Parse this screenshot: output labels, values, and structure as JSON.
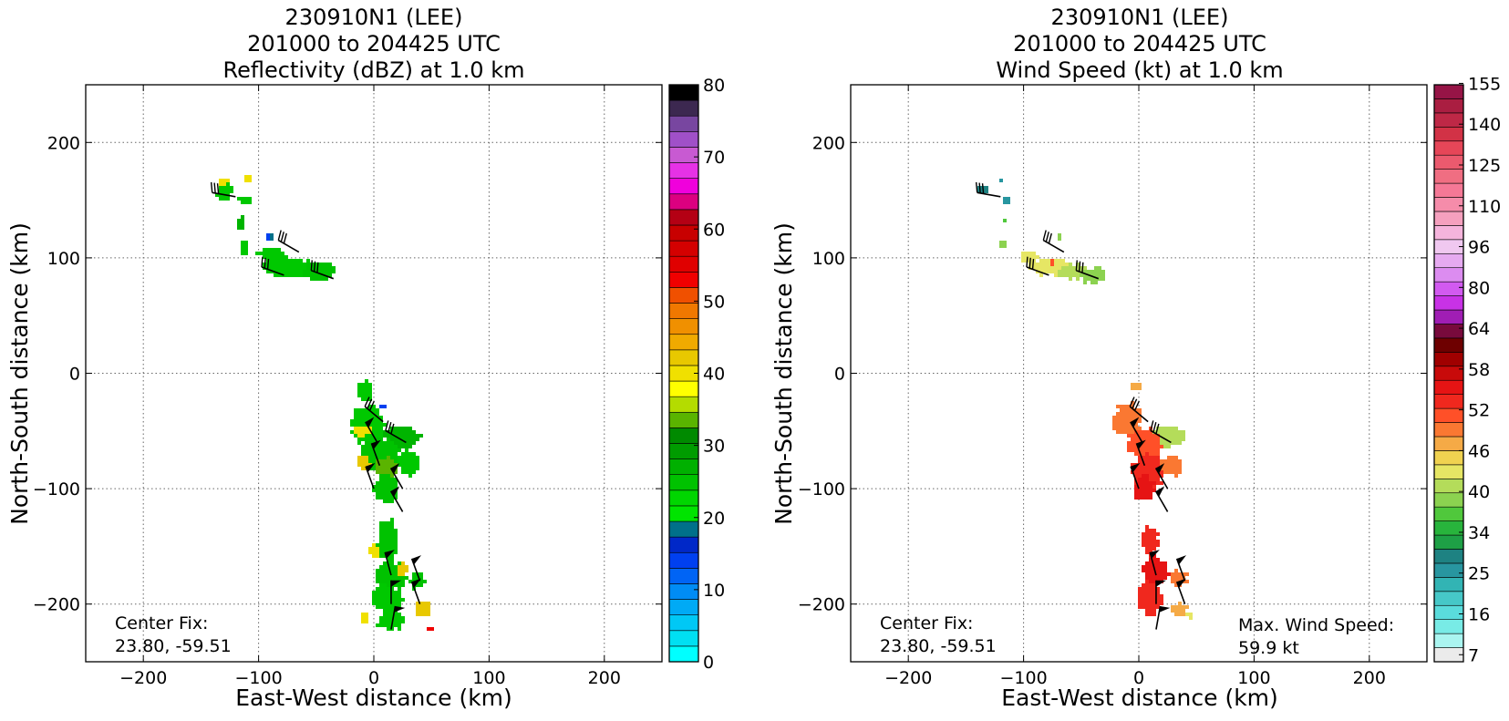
{
  "chart_data": [
    {
      "type": "heatmap",
      "title": [
        "230910N1 (LEE)",
        "201000 to 204425 UTC",
        "Reflectivity (dBZ) at 1.0 km"
      ],
      "xlabel": "East-West distance (km)",
      "ylabel": "North-South distance (km)",
      "xlim": [
        -250,
        250
      ],
      "ylim": [
        -250,
        250
      ],
      "xticks": [
        -200,
        -100,
        0,
        100,
        200
      ],
      "yticks": [
        200,
        100,
        0,
        -100,
        -200
      ],
      "grid": true,
      "annotation": [
        "Center Fix:",
        "23.80, -59.51"
      ],
      "colorbar": {
        "min": 0,
        "max": 80,
        "tick_values": [
          0,
          10,
          20,
          30,
          40,
          50,
          60,
          70,
          80
        ],
        "colors": [
          "#00ffff",
          "#00e0f2",
          "#00c8f5",
          "#00aaf5",
          "#008cf5",
          "#0064f5",
          "#0040f0",
          "#0028c8",
          "#00708a",
          "#00e400",
          "#00d600",
          "#00c200",
          "#00b000",
          "#009c00",
          "#008a00",
          "#5ab400",
          "#b4dc00",
          "#ffff00",
          "#f0e000",
          "#e8c800",
          "#f0aa00",
          "#f09000",
          "#f07800",
          "#f05000",
          "#f00000",
          "#e00000",
          "#d40000",
          "#c80000",
          "#b40014",
          "#dc0080",
          "#f000dc",
          "#e632e6",
          "#c85ad2",
          "#a050c8",
          "#7846a0",
          "#3c2850",
          "#000000"
        ]
      },
      "regions": [
        {
          "cx": -130,
          "cy": 158,
          "rx": 8,
          "ry": 9,
          "color": "#00c800"
        },
        {
          "cx": -130,
          "cy": 166,
          "rx": 5,
          "ry": 3,
          "color": "#f0e000"
        },
        {
          "cx": -112,
          "cy": 150,
          "rx": 6,
          "ry": 4,
          "color": "#00c800"
        },
        {
          "cx": -110,
          "cy": 168,
          "rx": 4,
          "ry": 3,
          "color": "#f0e000"
        },
        {
          "cx": -115,
          "cy": 130,
          "rx": 4,
          "ry": 6,
          "color": "#00b400"
        },
        {
          "cx": -112,
          "cy": 110,
          "rx": 5,
          "ry": 8,
          "color": "#00c800"
        },
        {
          "cx": -88,
          "cy": 103,
          "rx": 14,
          "ry": 7,
          "color": "#00c800"
        },
        {
          "cx": -75,
          "cy": 92,
          "rx": 24,
          "ry": 9,
          "color": "#00c800"
        },
        {
          "cx": -48,
          "cy": 88,
          "rx": 16,
          "ry": 9,
          "color": "#00c200"
        },
        {
          "cx": -92,
          "cy": 118,
          "rx": 3,
          "ry": 3,
          "color": "#0040f0"
        },
        {
          "cx": -88,
          "cy": 118,
          "rx": 2,
          "ry": 2,
          "color": "#00708a"
        },
        {
          "cx": -8,
          "cy": -15,
          "rx": 8,
          "ry": 10,
          "color": "#00c800"
        },
        {
          "cx": 8,
          "cy": -28,
          "rx": 3,
          "ry": 2,
          "color": "#0040f0"
        },
        {
          "cx": -5,
          "cy": -45,
          "rx": 16,
          "ry": 18,
          "color": "#00c800"
        },
        {
          "cx": 25,
          "cy": -55,
          "rx": 18,
          "ry": 10,
          "color": "#00b400"
        },
        {
          "cx": -10,
          "cy": -50,
          "rx": 9,
          "ry": 6,
          "color": "#f0e000"
        },
        {
          "cx": 5,
          "cy": -70,
          "rx": 18,
          "ry": 16,
          "color": "#00c200"
        },
        {
          "cx": 10,
          "cy": -82,
          "rx": 10,
          "ry": 10,
          "color": "#5ab400"
        },
        {
          "cx": -8,
          "cy": -78,
          "rx": 6,
          "ry": 8,
          "color": "#e8c800"
        },
        {
          "cx": 30,
          "cy": -78,
          "rx": 10,
          "ry": 12,
          "color": "#00c800"
        },
        {
          "cx": 10,
          "cy": -100,
          "rx": 12,
          "ry": 14,
          "color": "#00c200"
        },
        {
          "cx": 12,
          "cy": -145,
          "rx": 10,
          "ry": 20,
          "color": "#00c200"
        },
        {
          "cx": 0,
          "cy": -155,
          "rx": 5,
          "ry": 7,
          "color": "#f0e000"
        },
        {
          "cx": 15,
          "cy": -175,
          "rx": 14,
          "ry": 14,
          "color": "#00c200"
        },
        {
          "cx": 25,
          "cy": -170,
          "rx": 6,
          "ry": 6,
          "color": "#e8c800"
        },
        {
          "cx": 12,
          "cy": -195,
          "rx": 14,
          "ry": 14,
          "color": "#00c800"
        },
        {
          "cx": 38,
          "cy": -180,
          "rx": 8,
          "ry": 8,
          "color": "#00c200"
        },
        {
          "cx": 42,
          "cy": -205,
          "rx": 8,
          "ry": 8,
          "color": "#e8c800"
        },
        {
          "cx": 15,
          "cy": -215,
          "rx": 14,
          "ry": 8,
          "color": "#00c800"
        },
        {
          "cx": -8,
          "cy": -212,
          "rx": 5,
          "ry": 5,
          "color": "#f0e000"
        },
        {
          "cx": 50,
          "cy": -222,
          "rx": 4,
          "ry": 2,
          "color": "#f00000"
        }
      ]
    },
    {
      "type": "heatmap",
      "title": [
        "230910N1 (LEE)",
        "201000 to 204425 UTC",
        "Wind Speed (kt) at 1.0 km"
      ],
      "xlabel": "East-West distance (km)",
      "ylabel": "North-South distance (km)",
      "xlim": [
        -250,
        250
      ],
      "ylim": [
        -250,
        250
      ],
      "xticks": [
        -200,
        -100,
        0,
        100,
        200
      ],
      "yticks": [
        200,
        100,
        0,
        -100,
        -200
      ],
      "grid": true,
      "annotation": [
        "Center Fix:",
        "23.80, -59.51"
      ],
      "max_wind_label": [
        "Max. Wind Speed:",
        "59.9 kt"
      ],
      "colorbar": {
        "tick_values": [
          7,
          16,
          25,
          34,
          40,
          46,
          52,
          58,
          64,
          80,
          96,
          110,
          125,
          140,
          155
        ],
        "colors": [
          "#ebebeb",
          "#aaf5f0",
          "#78ebe6",
          "#5adcdc",
          "#46c8c8",
          "#32b4b4",
          "#2896a0",
          "#1e8282",
          "#1ea046",
          "#28b43c",
          "#50c83c",
          "#8cd250",
          "#b4dc5a",
          "#e6e664",
          "#f0d250",
          "#f5aa46",
          "#fa7832",
          "#ff5028",
          "#f0281e",
          "#e61414",
          "#c80a0a",
          "#a00000",
          "#6e0000",
          "#780a3c",
          "#a01eb4",
          "#c832e6",
          "#d25af0",
          "#dc8cf0",
          "#e6aaf0",
          "#f0c8f0",
          "#f5b4dc",
          "#f5a0be",
          "#f58caa",
          "#f57896",
          "#f06e82",
          "#eb5a6e",
          "#e64658",
          "#d23246",
          "#be2846",
          "#aa1e41",
          "#961446"
        ]
      },
      "regions": [
        {
          "cx": -135,
          "cy": 160,
          "rx": 6,
          "ry": 4,
          "color": "#1e8282"
        },
        {
          "cx": -115,
          "cy": 150,
          "rx": 4,
          "ry": 3,
          "color": "#2896a0"
        },
        {
          "cx": -118,
          "cy": 168,
          "rx": 2,
          "ry": 3,
          "color": "#2896a0"
        },
        {
          "cx": -115,
          "cy": 132,
          "rx": 2,
          "ry": 4,
          "color": "#50c83c"
        },
        {
          "cx": -118,
          "cy": 112,
          "rx": 2,
          "ry": 5,
          "color": "#8cd250"
        },
        {
          "cx": -95,
          "cy": 100,
          "rx": 8,
          "ry": 6,
          "color": "#e6e664"
        },
        {
          "cx": -78,
          "cy": 92,
          "rx": 18,
          "ry": 8,
          "color": "#e6e664"
        },
        {
          "cx": -58,
          "cy": 88,
          "rx": 14,
          "ry": 7,
          "color": "#b4dc5a"
        },
        {
          "cx": -40,
          "cy": 85,
          "rx": 12,
          "ry": 8,
          "color": "#8cd250"
        },
        {
          "cx": -70,
          "cy": 118,
          "rx": 3,
          "ry": 2,
          "color": "#8cd250"
        },
        {
          "cx": -75,
          "cy": 96,
          "rx": 2,
          "ry": 3,
          "color": "#ff5028"
        },
        {
          "cx": -2,
          "cy": -12,
          "rx": 6,
          "ry": 4,
          "color": "#f5aa46"
        },
        {
          "cx": -10,
          "cy": -40,
          "rx": 14,
          "ry": 16,
          "color": "#fa7832"
        },
        {
          "cx": 25,
          "cy": -55,
          "rx": 18,
          "ry": 9,
          "color": "#b4dc5a"
        },
        {
          "cx": 5,
          "cy": -62,
          "rx": 16,
          "ry": 16,
          "color": "#ff5028"
        },
        {
          "cx": 8,
          "cy": -85,
          "rx": 16,
          "ry": 16,
          "color": "#f0281e"
        },
        {
          "cx": 28,
          "cy": -80,
          "rx": 10,
          "ry": 10,
          "color": "#fa7832"
        },
        {
          "cx": 5,
          "cy": -100,
          "rx": 10,
          "ry": 12,
          "color": "#e61414"
        },
        {
          "cx": 10,
          "cy": -145,
          "rx": 8,
          "ry": 14,
          "color": "#f0281e"
        },
        {
          "cx": 15,
          "cy": -172,
          "rx": 12,
          "ry": 14,
          "color": "#e61414"
        },
        {
          "cx": 35,
          "cy": -178,
          "rx": 8,
          "ry": 8,
          "color": "#fa7832"
        },
        {
          "cx": 10,
          "cy": -195,
          "rx": 12,
          "ry": 16,
          "color": "#f0281e"
        },
        {
          "cx": 35,
          "cy": -205,
          "rx": 8,
          "ry": 6,
          "color": "#f5aa46"
        },
        {
          "cx": 45,
          "cy": -210,
          "rx": 4,
          "ry": 3,
          "color": "#e6e664"
        }
      ]
    }
  ],
  "wind_barbs": [
    {
      "x": -120,
      "y": 153,
      "dir": 280,
      "flags": 0,
      "feathers": 3
    },
    {
      "x": -65,
      "y": 105,
      "dir": 300,
      "flags": 0,
      "feathers": 3
    },
    {
      "x": -78,
      "y": 85,
      "dir": 290,
      "flags": 0,
      "feathers": 3
    },
    {
      "x": -35,
      "y": 82,
      "dir": 290,
      "flags": 0,
      "feathers": 3
    },
    {
      "x": 8,
      "y": -42,
      "dir": 310,
      "flags": 0,
      "feathers": 3
    },
    {
      "x": 28,
      "y": -60,
      "dir": 300,
      "flags": 0,
      "feathers": 3
    },
    {
      "x": 3,
      "y": -60,
      "dir": 330,
      "flags": 1,
      "feathers": 0
    },
    {
      "x": 5,
      "y": -80,
      "dir": 340,
      "flags": 1,
      "feathers": 0
    },
    {
      "x": 0,
      "y": -100,
      "dir": 340,
      "flags": 1,
      "feathers": 0
    },
    {
      "x": 25,
      "y": -100,
      "dir": 330,
      "flags": 1,
      "feathers": 0
    },
    {
      "x": 25,
      "y": -120,
      "dir": 330,
      "flags": 1,
      "feathers": 0
    },
    {
      "x": 15,
      "y": -175,
      "dir": 345,
      "flags": 1,
      "feathers": 0
    },
    {
      "x": 40,
      "y": -180,
      "dir": 340,
      "flags": 1,
      "feathers": 0
    },
    {
      "x": 15,
      "y": -200,
      "dir": 0,
      "flags": 1,
      "feathers": 0
    },
    {
      "x": 40,
      "y": -200,
      "dir": 340,
      "flags": 1,
      "feathers": 0
    },
    {
      "x": 15,
      "y": -222,
      "dir": 10,
      "flags": 1,
      "feathers": 0
    }
  ]
}
